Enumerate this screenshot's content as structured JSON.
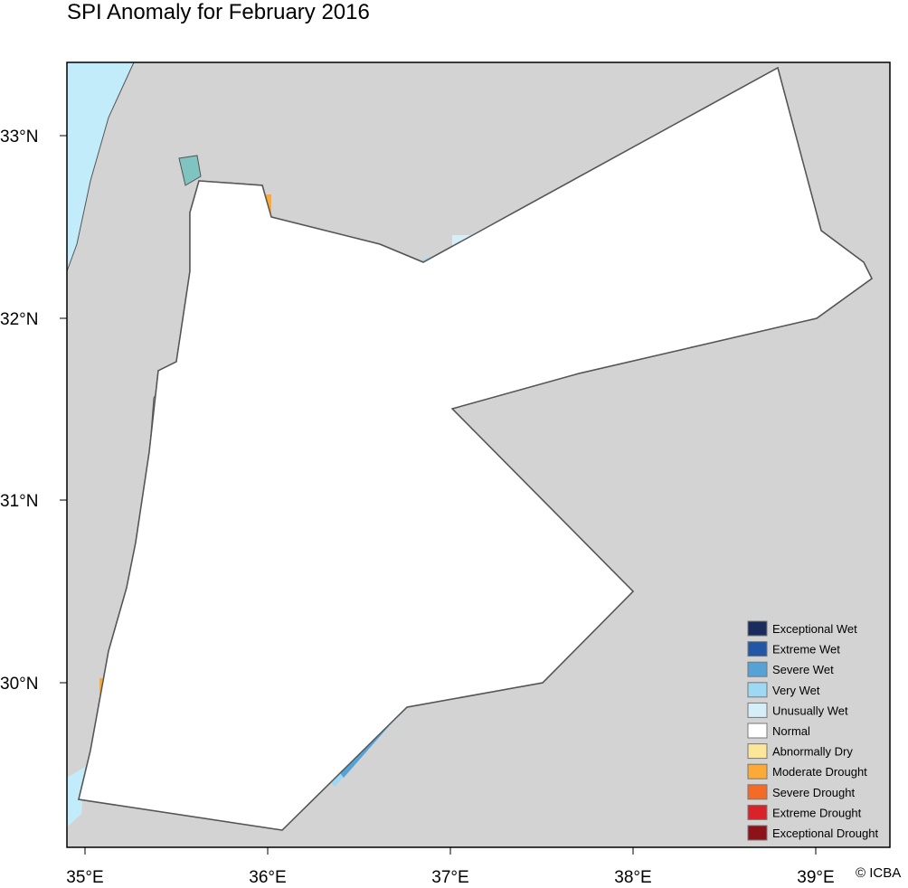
{
  "title": "SPI Anomaly for February 2016",
  "credit": "© ICBA",
  "x_ticks": [
    "35°E",
    "36°E",
    "37°E",
    "38°E",
    "39°E"
  ],
  "y_ticks": [
    "33°N",
    "32°N",
    "31°N",
    "30°N"
  ],
  "legend": [
    {
      "label": "Exceptional Wet",
      "color": "#1a2c5e"
    },
    {
      "label": "Extreme Wet",
      "color": "#2257a6"
    },
    {
      "label": "Severe Wet",
      "color": "#54a2d6"
    },
    {
      "label": "Very Wet",
      "color": "#9dd8f4"
    },
    {
      "label": "Unusually Wet",
      "color": "#d6eef8"
    },
    {
      "label": "Normal",
      "color": "#ffffff"
    },
    {
      "label": "Abnormally Dry",
      "color": "#fce69a"
    },
    {
      "label": "Moderate Drought",
      "color": "#fbab35"
    },
    {
      "label": "Severe Drought",
      "color": "#f46b28"
    },
    {
      "label": "Extreme Drought",
      "color": "#d8232a"
    },
    {
      "label": "Exceptional Drought",
      "color": "#8c1418"
    }
  ],
  "colors": {
    "background": "#d3d3d3",
    "sea": "#c2ecfa",
    "dead_sea": "#7fc4c0"
  }
}
